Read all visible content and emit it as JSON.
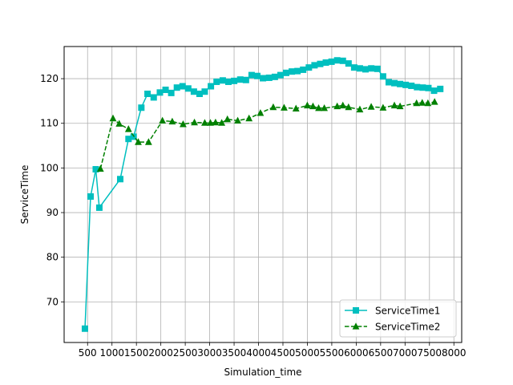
{
  "chart_data": {
    "type": "line",
    "title": "",
    "xlabel": "Simulation_time",
    "ylabel": "ServiceTime",
    "xlim": [
      20,
      8160
    ],
    "ylim": [
      60.9,
      127.2
    ],
    "xticks": [
      500,
      1000,
      1500,
      2000,
      2500,
      3000,
      3500,
      4000,
      4500,
      5000,
      5500,
      6000,
      6500,
      7000,
      7500,
      8000
    ],
    "yticks": [
      70,
      80,
      90,
      100,
      110,
      120
    ],
    "grid": true,
    "legend_position": "lower-right",
    "series": [
      {
        "name": "ServiceTime1",
        "color": "#00bfbf",
        "line_style": "solid",
        "marker": "square",
        "x": [
          446,
          562,
          668,
          741,
          1169,
          1338,
          1443,
          1601,
          1728,
          1854,
          1981,
          2097,
          2213,
          2329,
          2445,
          2561,
          2677,
          2793,
          2899,
          3025,
          3142,
          3268,
          3384,
          3501,
          3627,
          3743,
          3859,
          3975,
          4091,
          4218,
          4334,
          4450,
          4566,
          4682,
          4798,
          4914,
          5031,
          5147,
          5263,
          5379,
          5495,
          5611,
          5727,
          5843,
          5959,
          6075,
          6191,
          6308,
          6434,
          6550,
          6666,
          6782,
          6898,
          7014,
          7130,
          7246,
          7362,
          7478,
          7594,
          7721
        ],
        "y": [
          64.0,
          93.6,
          99.7,
          91.1,
          97.5,
          106.5,
          107.0,
          113.5,
          116.6,
          115.8,
          116.9,
          117.5,
          116.8,
          118.0,
          118.3,
          117.8,
          117.1,
          116.6,
          117.1,
          118.3,
          119.3,
          119.6,
          119.3,
          119.5,
          119.8,
          119.7,
          120.8,
          120.6,
          120.1,
          120.2,
          120.4,
          120.8,
          121.3,
          121.6,
          121.7,
          122.0,
          122.5,
          123.0,
          123.3,
          123.6,
          123.8,
          124.1,
          124.0,
          123.4,
          122.5,
          122.3,
          122.1,
          122.3,
          122.2,
          120.5,
          119.2,
          119.0,
          118.8,
          118.6,
          118.4,
          118.1,
          118.0,
          117.9,
          117.3,
          117.7
        ]
      },
      {
        "name": "ServiceTime2",
        "color": "#008000",
        "line_style": "dashed",
        "marker": "triangle",
        "x": [
          763,
          1021,
          1148,
          1338,
          1538,
          1749,
          2033,
          2234,
          2456,
          2688,
          2899,
          3015,
          3120,
          3247,
          3363,
          3574,
          3806,
          4039,
          4302,
          4524,
          4767,
          4999,
          5115,
          5231,
          5347,
          5611,
          5727,
          5843,
          6075,
          6307,
          6550,
          6782,
          6898,
          7236,
          7352,
          7468,
          7605
        ],
        "y": [
          99.8,
          111.1,
          109.9,
          108.7,
          105.8,
          105.8,
          110.6,
          110.4,
          109.8,
          110.2,
          110.1,
          110.1,
          110.2,
          110.1,
          110.9,
          110.6,
          111.1,
          112.3,
          113.6,
          113.5,
          113.3,
          114.0,
          113.8,
          113.4,
          113.4,
          113.8,
          114.0,
          113.6,
          113.1,
          113.7,
          113.5,
          114.0,
          113.8,
          114.5,
          114.6,
          114.5,
          114.8
        ]
      }
    ]
  }
}
